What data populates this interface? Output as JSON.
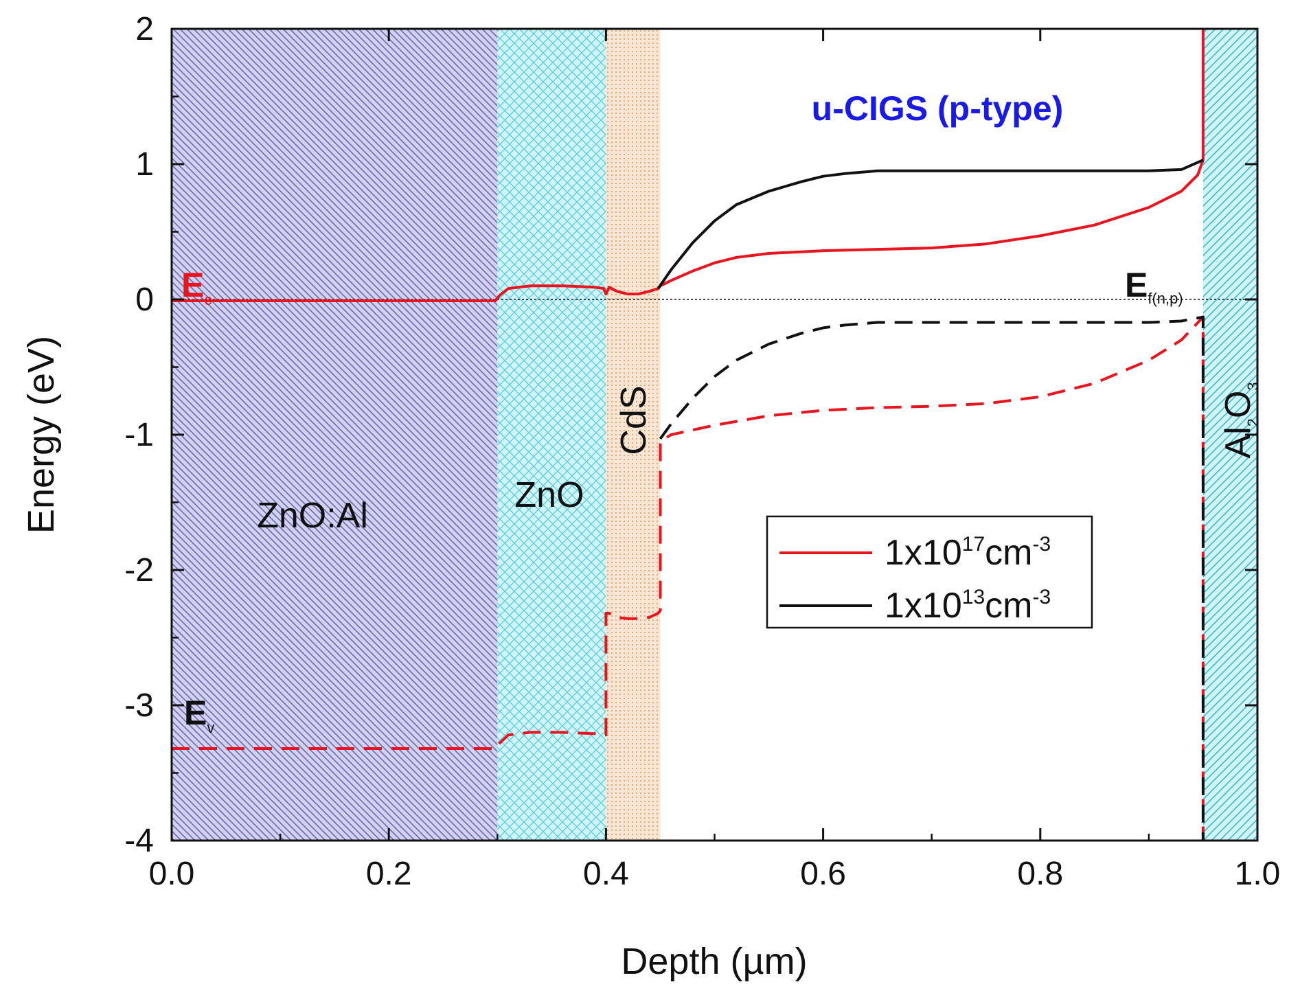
{
  "chart_data": {
    "type": "line",
    "title": "u-CIGS (p-type)",
    "xlabel": "Depth (µm)",
    "ylabel": "Energy (eV)",
    "xlim": [
      0.0,
      1.0
    ],
    "ylim": [
      -4,
      2
    ],
    "xticks": [
      "0.0",
      "0.2",
      "0.4",
      "0.6",
      "0.8",
      "1.0"
    ],
    "yticks": [
      "-4",
      "-3",
      "-2",
      "-1",
      "0",
      "1",
      "2"
    ],
    "fermi_level": 0,
    "regions": [
      {
        "name": "ZnO:Al",
        "x": [
          0.0,
          0.3
        ],
        "color": "#7f7fd0"
      },
      {
        "name": "ZnO",
        "x": [
          0.3,
          0.4
        ],
        "color": "#7fdfea"
      },
      {
        "name": "CdS",
        "x": [
          0.4,
          0.45
        ],
        "color": "#f0c8a0"
      },
      {
        "name": "u-CIGS (p-type)",
        "x": [
          0.45,
          0.95
        ],
        "color": "#ffffff"
      },
      {
        "name": "Al2O3",
        "x": [
          0.95,
          1.0
        ],
        "color": "#7fdfea"
      }
    ],
    "region_labels": {
      "znoal": "ZnO:Al",
      "zno": "ZnO",
      "cds": "CdS",
      "al2o3_main": "Al",
      "al2o3_sub1": "2",
      "al2o3_mid": "O",
      "al2o3_sub2": "3"
    },
    "band_labels": {
      "ec_main": "E",
      "ec_sub": "c",
      "ev_main": "E",
      "ev_sub": "v",
      "ef_main": "E",
      "ef_sub": "f(n,p)"
    },
    "legend": [
      {
        "prefix": "1x10",
        "exp": "17",
        "unit": "cm",
        "unit_exp": "-3",
        "color": "#e8141e"
      },
      {
        "prefix": "1x10",
        "exp": "13",
        "unit": "cm",
        "unit_exp": "-3",
        "color": "#111111"
      }
    ],
    "series": [
      {
        "name": "Ec 1x10^17 cm^-3",
        "band": "Ec",
        "style": "solid",
        "color": "#e8141e",
        "x": [
          0.0,
          0.298,
          0.302,
          0.31,
          0.33,
          0.36,
          0.39,
          0.398,
          0.4,
          0.403,
          0.41,
          0.42,
          0.43,
          0.44,
          0.448,
          0.45,
          0.46,
          0.48,
          0.5,
          0.52,
          0.55,
          0.6,
          0.65,
          0.7,
          0.75,
          0.8,
          0.85,
          0.9,
          0.93,
          0.945,
          0.95,
          0.95
        ],
        "y": [
          -0.01,
          -0.01,
          0.03,
          0.08,
          0.1,
          0.1,
          0.09,
          0.08,
          0.04,
          0.09,
          0.06,
          0.04,
          0.04,
          0.06,
          0.08,
          0.1,
          0.14,
          0.21,
          0.27,
          0.31,
          0.34,
          0.36,
          0.37,
          0.38,
          0.41,
          0.47,
          0.55,
          0.68,
          0.8,
          0.92,
          1.03,
          2.0
        ]
      },
      {
        "name": "Ec 1x10^13 cm^-3",
        "band": "Ec",
        "style": "solid",
        "color": "#111111",
        "x": [
          0.448,
          0.46,
          0.48,
          0.5,
          0.52,
          0.55,
          0.58,
          0.6,
          0.62,
          0.65,
          0.7,
          0.75,
          0.8,
          0.85,
          0.9,
          0.93,
          0.95
        ],
        "y": [
          0.08,
          0.22,
          0.42,
          0.58,
          0.7,
          0.8,
          0.87,
          0.91,
          0.93,
          0.95,
          0.95,
          0.95,
          0.95,
          0.95,
          0.95,
          0.96,
          1.03
        ]
      },
      {
        "name": "Ev 1x10^17 cm^-3",
        "band": "Ev",
        "style": "dashed",
        "color": "#e8141e",
        "x": [
          0.0,
          0.298,
          0.302,
          0.31,
          0.33,
          0.36,
          0.39,
          0.4,
          0.4,
          0.403,
          0.41,
          0.42,
          0.43,
          0.44,
          0.448,
          0.45,
          0.45,
          0.46,
          0.5,
          0.55,
          0.6,
          0.65,
          0.7,
          0.75,
          0.8,
          0.85,
          0.9,
          0.93,
          0.95,
          0.95
        ],
        "y": [
          -3.32,
          -3.32,
          -3.28,
          -3.22,
          -3.2,
          -3.2,
          -3.21,
          -3.22,
          -2.32,
          -2.32,
          -2.35,
          -2.36,
          -2.36,
          -2.35,
          -2.32,
          -2.3,
          -1.05,
          -1.0,
          -0.93,
          -0.86,
          -0.82,
          -0.8,
          -0.79,
          -0.77,
          -0.72,
          -0.62,
          -0.45,
          -0.3,
          -0.13,
          -4.0
        ]
      },
      {
        "name": "Ev 1x10^13 cm^-3",
        "band": "Ev",
        "style": "dashed",
        "color": "#111111",
        "x": [
          0.45,
          0.46,
          0.48,
          0.5,
          0.52,
          0.55,
          0.58,
          0.6,
          0.62,
          0.65,
          0.7,
          0.75,
          0.8,
          0.85,
          0.9,
          0.93,
          0.95,
          0.95
        ],
        "y": [
          -1.03,
          -0.92,
          -0.73,
          -0.57,
          -0.45,
          -0.33,
          -0.25,
          -0.21,
          -0.19,
          -0.17,
          -0.17,
          -0.17,
          -0.17,
          -0.17,
          -0.17,
          -0.16,
          -0.13,
          -4.0
        ]
      }
    ]
  }
}
